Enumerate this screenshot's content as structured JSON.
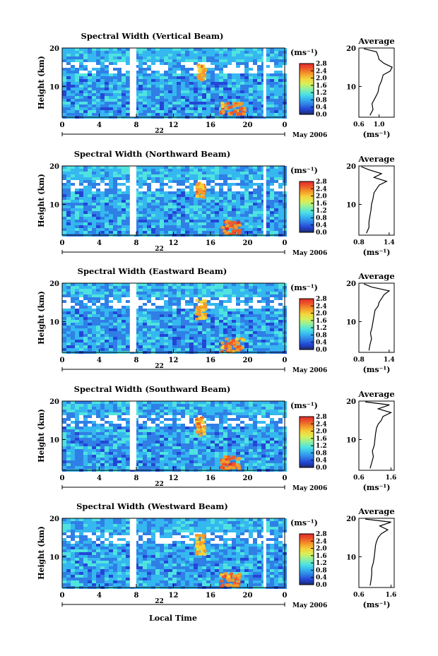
{
  "figure": {
    "xaxis_label": "Local Time",
    "month_label": "May 2006",
    "day_label": "22",
    "colorbar_units": "(ms⁻¹)",
    "colorbar_ticks": [
      "0.0",
      "0.4",
      "0.8",
      "1.2",
      "1.6",
      "2.0",
      "2.4",
      "2.8"
    ],
    "profile_xlabel": "(ms⁻¹)",
    "colormap": [
      "#1c2a6b",
      "#2346d6",
      "#2f7fe6",
      "#35b7f0",
      "#4fe3e0",
      "#8ff0a0",
      "#d6f05a",
      "#f5d43a",
      "#f59a2a",
      "#ee5a2a",
      "#e02a2a"
    ]
  },
  "chart_data": [
    {
      "type": "heatmap",
      "title": "Spectral Width (Vertical Beam)",
      "ylabel": "Height (km)",
      "xlabel": "Local Time",
      "x_ticks": [
        "0",
        "4",
        "8",
        "12",
        "16",
        "20",
        "0"
      ],
      "y_ticks": [
        "20",
        "10"
      ],
      "xlim": [
        0,
        24
      ],
      "ylim": [
        2,
        20
      ],
      "units": "ms⁻¹",
      "colorbar_range": [
        0.0,
        2.8
      ],
      "data_gaps_local_time": [
        [
          7.3,
          8.0
        ],
        [
          21.7,
          22.0
        ]
      ],
      "features": [
        {
          "label": "",
          "time": [
            14.5,
            15.3
          ],
          "height": [
            12,
            16
          ],
          "value": 2.4
        },
        {
          "label": "",
          "time": [
            16.8,
            19.5
          ],
          "height": [
            3,
            6
          ],
          "value": 2.6
        }
      ],
      "average_profile": {
        "title": "Average",
        "xlabel": "(ms⁻¹)",
        "x_ticks": [
          "0.6",
          "1.0"
        ],
        "y_ticks": [
          "20",
          "10"
        ],
        "xlim": [
          0.6,
          1.3
        ],
        "ylim": [
          2,
          20
        ],
        "height_km": [
          2.5,
          4,
          5.5,
          7,
          8.5,
          10,
          11.5,
          13,
          14,
          15,
          16,
          17,
          18,
          19,
          19.8
        ],
        "value": [
          0.82,
          0.88,
          0.86,
          0.92,
          0.98,
          1.0,
          1.05,
          1.08,
          1.22,
          1.26,
          1.1,
          1.0,
          0.98,
          0.95,
          0.7
        ]
      }
    },
    {
      "type": "heatmap",
      "title": "Spectral Width (Northward Beam)",
      "ylabel": "Height (km)",
      "xlabel": "Local Time",
      "x_ticks": [
        "0",
        "4",
        "8",
        "12",
        "16",
        "20",
        "0"
      ],
      "y_ticks": [
        "20",
        "10"
      ],
      "xlim": [
        0,
        24
      ],
      "ylim": [
        2,
        20
      ],
      "units": "ms⁻¹",
      "colorbar_range": [
        0.0,
        2.8
      ],
      "data_gaps_local_time": [
        [
          7.3,
          8.0
        ],
        [
          21.7,
          22.0
        ]
      ],
      "features": [
        {
          "label": "",
          "time": [
            14.3,
            15.2
          ],
          "height": [
            12,
            16
          ],
          "value": 2.5
        },
        {
          "label": "",
          "time": [
            17.0,
            19.0
          ],
          "height": [
            2.5,
            6
          ],
          "value": 2.7
        }
      ],
      "average_profile": {
        "title": "Average",
        "xlabel": "(ms⁻¹)",
        "x_ticks": [
          "0.8",
          "1.4"
        ],
        "y_ticks": [
          "20",
          "10"
        ],
        "xlim": [
          0.8,
          1.5
        ],
        "ylim": [
          2,
          20
        ],
        "height_km": [
          2.5,
          4,
          5.5,
          7,
          8.5,
          10,
          11.5,
          13,
          14,
          15,
          16,
          17,
          18,
          19,
          19.8
        ],
        "value": [
          0.95,
          1.0,
          1.0,
          1.02,
          1.04,
          1.05,
          1.08,
          1.1,
          1.15,
          1.2,
          1.35,
          1.1,
          1.25,
          1.0,
          0.85
        ]
      }
    },
    {
      "type": "heatmap",
      "title": "Spectral Width (Eastward Beam)",
      "ylabel": "Height (km)",
      "xlabel": "Local Time",
      "x_ticks": [
        "0",
        "4",
        "8",
        "12",
        "16",
        "20",
        "0"
      ],
      "y_ticks": [
        "20",
        "10"
      ],
      "xlim": [
        0,
        24
      ],
      "ylim": [
        2,
        20
      ],
      "units": "ms⁻¹",
      "colorbar_range": [
        0.0,
        2.8
      ],
      "data_gaps_local_time": [
        [
          7.3,
          8.0
        ]
      ],
      "features": [
        {
          "label": "",
          "time": [
            14.3,
            15.3
          ],
          "height": [
            11,
            16
          ],
          "value": 2.4
        },
        {
          "label": "",
          "time": [
            17.0,
            19.5
          ],
          "height": [
            2.5,
            6
          ],
          "value": 2.6
        }
      ],
      "average_profile": {
        "title": "Average",
        "xlabel": "(ms⁻¹)",
        "x_ticks": [
          "0.8",
          "1.4"
        ],
        "y_ticks": [
          "20",
          "10"
        ],
        "xlim": [
          0.8,
          1.5
        ],
        "ylim": [
          2,
          20
        ],
        "height_km": [
          2.5,
          4,
          5.5,
          7,
          8.5,
          10,
          11.5,
          13,
          14,
          15,
          16,
          17,
          18,
          19,
          19.8
        ],
        "value": [
          1.0,
          1.02,
          1.05,
          1.03,
          1.06,
          1.08,
          1.1,
          1.12,
          1.18,
          1.2,
          1.25,
          1.3,
          1.4,
          1.05,
          0.9
        ]
      }
    },
    {
      "type": "heatmap",
      "title": "Spectral Width (Southward Beam)",
      "ylabel": "Height (km)",
      "xlabel": "Local Time",
      "x_ticks": [
        "0",
        "4",
        "8",
        "12",
        "16",
        "20",
        "0"
      ],
      "y_ticks": [
        "20",
        "10"
      ],
      "xlim": [
        0,
        24
      ],
      "ylim": [
        2,
        20
      ],
      "units": "ms⁻¹",
      "colorbar_range": [
        0.0,
        2.8
      ],
      "data_gaps_local_time": [
        [
          7.3,
          8.0
        ]
      ],
      "features": [
        {
          "label": "",
          "time": [
            14.3,
            15.2
          ],
          "height": [
            11,
            16
          ],
          "value": 2.5
        },
        {
          "label": "",
          "time": [
            17.0,
            19.0
          ],
          "height": [
            2.5,
            6
          ],
          "value": 2.7
        }
      ],
      "average_profile": {
        "title": "Average",
        "xlabel": "(ms⁻¹)",
        "x_ticks": [
          "0.6",
          "1.6"
        ],
        "y_ticks": [
          "20",
          "10"
        ],
        "xlim": [
          0.6,
          1.7
        ],
        "ylim": [
          2,
          20
        ],
        "height_km": [
          2.5,
          4,
          5.5,
          7,
          8.5,
          10,
          11.5,
          13,
          14,
          15,
          16,
          17,
          18,
          19,
          19.8
        ],
        "value": [
          0.95,
          1.0,
          1.05,
          1.02,
          1.08,
          1.1,
          1.12,
          1.15,
          1.2,
          1.3,
          1.35,
          1.6,
          1.2,
          1.55,
          0.8
        ]
      }
    },
    {
      "type": "heatmap",
      "title": "Spectral Width (Westward Beam)",
      "ylabel": "Height (km)",
      "xlabel": "Local Time",
      "x_ticks": [
        "0",
        "4",
        "8",
        "12",
        "16",
        "20",
        "0"
      ],
      "y_ticks": [
        "20",
        "10"
      ],
      "xlim": [
        0,
        24
      ],
      "ylim": [
        2,
        20
      ],
      "units": "ms⁻¹",
      "colorbar_range": [
        0.0,
        2.8
      ],
      "data_gaps_local_time": [
        [
          7.3,
          8.0
        ],
        [
          21.7,
          22.0
        ]
      ],
      "features": [
        {
          "label": "",
          "time": [
            14.3,
            15.2
          ],
          "height": [
            11,
            16
          ],
          "value": 2.4
        },
        {
          "label": "",
          "time": [
            17.0,
            19.0
          ],
          "height": [
            2.5,
            6
          ],
          "value": 2.6
        }
      ],
      "average_profile": {
        "title": "Average",
        "xlabel": "(ms⁻¹)",
        "x_ticks": [
          "0.6",
          "1.6"
        ],
        "y_ticks": [
          "20",
          "10"
        ],
        "xlim": [
          0.6,
          1.7
        ],
        "ylim": [
          2,
          20
        ],
        "height_km": [
          2.5,
          4,
          5.5,
          7,
          8.5,
          10,
          11.5,
          13,
          14,
          15,
          16,
          17,
          18,
          19,
          19.8
        ],
        "value": [
          0.95,
          0.98,
          1.0,
          1.0,
          1.05,
          1.08,
          1.1,
          1.12,
          1.15,
          1.2,
          1.3,
          1.5,
          1.25,
          1.6,
          0.8
        ]
      }
    }
  ]
}
